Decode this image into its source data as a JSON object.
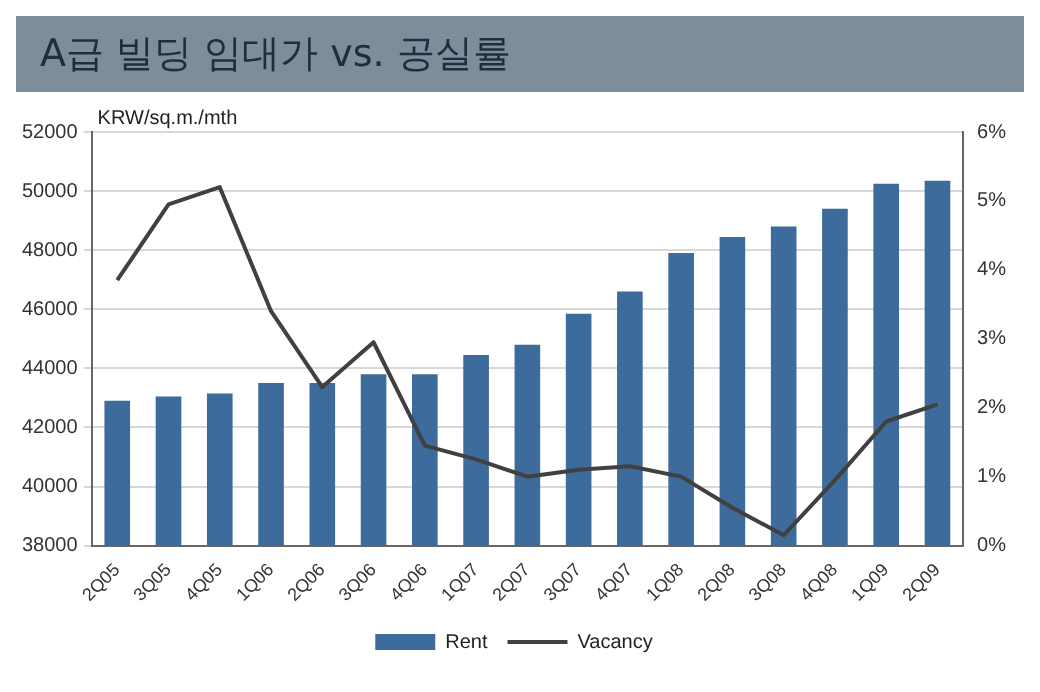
{
  "chart_data": {
    "type": "bar",
    "title": "A급 빌딩 임대가 vs. 공실률",
    "ylabel": "KRW/sq.m./mth",
    "categories": [
      "2Q05",
      "3Q05",
      "4Q05",
      "1Q06",
      "2Q06",
      "3Q06",
      "4Q06",
      "1Q07",
      "2Q07",
      "3Q07",
      "4Q07",
      "1Q08",
      "2Q08",
      "3Q08",
      "4Q08",
      "1Q09",
      "2Q09"
    ],
    "series": [
      {
        "name": "Rent",
        "color": "#3d6b9b",
        "values": [
          42900,
          43050,
          43150,
          43500,
          43500,
          43800,
          43800,
          44450,
          44800,
          45850,
          46600,
          47900,
          48450,
          48800,
          49400,
          50250,
          50350
        ]
      },
      {
        "name": "Vacancy",
        "type": "line",
        "axis": "y2",
        "color": "#404040",
        "values": [
          3.85,
          4.95,
          5.2,
          3.4,
          2.3,
          2.95,
          1.45,
          1.25,
          1.0,
          1.1,
          1.15,
          1.0,
          0.55,
          0.15,
          0.95,
          1.8,
          2.05
        ]
      }
    ],
    "ylim": [
      38000,
      52000
    ],
    "yticks": [
      38000,
      40000,
      42000,
      44000,
      46000,
      48000,
      50000,
      52000
    ],
    "y2lim": [
      0,
      6
    ],
    "y2ticks": [
      {
        "value": 0,
        "label": "0%"
      },
      {
        "value": 1,
        "label": "1%"
      },
      {
        "value": 2,
        "label": "2%"
      },
      {
        "value": 3,
        "label": "3%"
      },
      {
        "value": 4,
        "label": "4%"
      },
      {
        "value": 5,
        "label": "5%"
      },
      {
        "value": 6,
        "label": "6%"
      }
    ],
    "grid": "y",
    "legend": "bottom",
    "marker": "none",
    "line_style": "solid"
  }
}
